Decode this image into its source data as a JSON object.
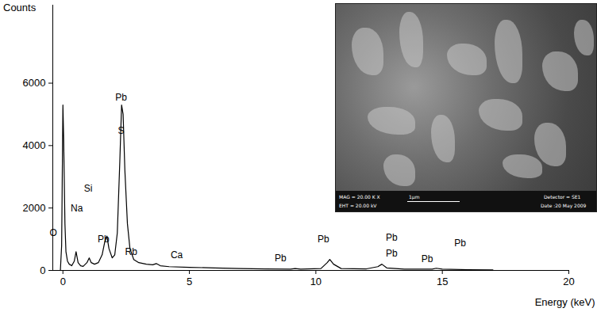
{
  "chart_data": {
    "type": "line",
    "y_label": "Counts",
    "x_label": "Energy (keV)",
    "color": "#000000",
    "xlim": [
      -0.4,
      20
    ],
    "ylim": [
      0,
      8500
    ],
    "xticks": [
      0,
      5,
      10,
      15,
      20
    ],
    "yticks": [
      0,
      2000,
      4000,
      6000
    ],
    "x": [
      -0.4,
      -0.1,
      -0.05,
      0,
      0.03,
      0.08,
      0.12,
      0.18,
      0.25,
      0.35,
      0.45,
      0.52,
      0.6,
      0.7,
      0.8,
      0.95,
      1.04,
      1.12,
      1.25,
      1.4,
      1.55,
      1.65,
      1.74,
      1.82,
      1.95,
      2.05,
      2.15,
      2.25,
      2.32,
      2.38,
      2.45,
      2.55,
      2.65,
      2.8,
      3.0,
      3.3,
      3.55,
      3.69,
      3.85,
      4.2,
      5,
      6,
      7,
      8,
      9,
      9.18,
      9.4,
      10.2,
      10.45,
      10.55,
      10.7,
      11,
      12,
      12.45,
      12.61,
      12.8,
      13.5,
      14.6,
      14.76,
      15,
      16,
      17
    ],
    "values": [
      0,
      0,
      800,
      5300,
      4200,
      1500,
      600,
      300,
      200,
      150,
      300,
      600,
      250,
      150,
      130,
      250,
      400,
      250,
      200,
      250,
      500,
      900,
      1100,
      700,
      400,
      500,
      1200,
      3500,
      5300,
      5000,
      3200,
      1500,
      700,
      350,
      250,
      200,
      180,
      220,
      150,
      120,
      100,
      80,
      60,
      50,
      40,
      60,
      40,
      60,
      250,
      350,
      200,
      60,
      50,
      120,
      200,
      80,
      40,
      40,
      70,
      40,
      25,
      15
    ],
    "annotations": [
      {
        "text": "O",
        "x": -0.38,
        "y": 1190
      },
      {
        "text": "Na",
        "x": 0.55,
        "y": 2000
      },
      {
        "text": "Si",
        "x": 1.0,
        "y": 2620
      },
      {
        "text": "Pb",
        "x": 1.6,
        "y": 1000
      },
      {
        "text": "Pb",
        "x": 2.3,
        "y": 5550
      },
      {
        "text": "S",
        "x": 2.3,
        "y": 4470
      },
      {
        "text": "Rb",
        "x": 2.7,
        "y": 600
      },
      {
        "text": "Ca",
        "x": 4.5,
        "y": 480
      },
      {
        "text": "Pb",
        "x": 8.6,
        "y": 400
      },
      {
        "text": "Pb",
        "x": 10.3,
        "y": 990
      },
      {
        "text": "Pb",
        "x": 13.0,
        "y": 1060
      },
      {
        "text": "Pb",
        "x": 13.0,
        "y": 540
      },
      {
        "text": "Pb",
        "x": 14.4,
        "y": 355
      },
      {
        "text": "Pb",
        "x": 15.7,
        "y": 860
      }
    ]
  },
  "inset_image": {
    "mag": "MAG = 20.00 K X",
    "eht": "EHT = 20.00 kV",
    "scale_bar": "1μm",
    "detector": "Detector = SE1",
    "date": "Date :20 May 2009"
  }
}
